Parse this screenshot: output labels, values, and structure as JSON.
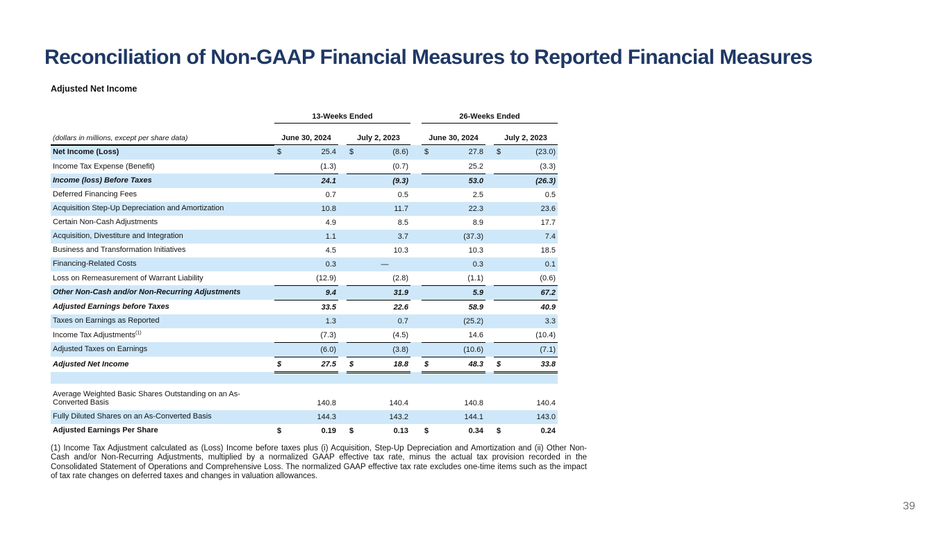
{
  "page": {
    "title": "Reconciliation of Non-GAAP Financial Measures to Reported Financial Measures",
    "subtitle": "Adjusted Net Income",
    "page_number": "39",
    "accent_color": "#1f3864",
    "row_highlight_color": "#cfe8f9"
  },
  "table": {
    "currency_symbol": "$",
    "unit_note": "(dollars in millions, except per share data)",
    "group_headers": [
      "13-Weeks Ended",
      "26-Weeks Ended"
    ],
    "column_headers": [
      "June 30, 2024",
      "July 2, 2023",
      "June 30, 2024",
      "July 2, 2023"
    ],
    "rows": [
      {
        "label": "Net Income (Loss)",
        "label_bold": true,
        "dollar": true,
        "shade": true,
        "underline": "none",
        "values": [
          "25.4",
          "(8.6)",
          "27.8",
          "(23.0)"
        ]
      },
      {
        "label": "Income Tax Expense (Benefit)",
        "shade": false,
        "underline": "single",
        "values": [
          "(1.3)",
          "(0.7)",
          "25.2",
          "(3.3)"
        ]
      },
      {
        "label": "Income (loss) Before Taxes",
        "bold": true,
        "italic": true,
        "shade": true,
        "underline": "none",
        "values": [
          "24.1",
          "(9.3)",
          "53.0",
          "(26.3)"
        ]
      },
      {
        "label": "Deferred Financing Fees",
        "shade": false,
        "underline": "none",
        "values": [
          "0.7",
          "0.5",
          "2.5",
          "0.5"
        ]
      },
      {
        "label": "Acquisition Step-Up Depreciation and Amortization",
        "shade": true,
        "underline": "none",
        "values": [
          "10.8",
          "11.7",
          "22.3",
          "23.6"
        ]
      },
      {
        "label": "Certain Non-Cash Adjustments",
        "shade": false,
        "underline": "none",
        "values": [
          "4.9",
          "8.5",
          "8.9",
          "17.7"
        ]
      },
      {
        "label": "Acquisition, Divestiture and Integration",
        "shade": true,
        "underline": "none",
        "values": [
          "1.1",
          "3.7",
          "(37.3)",
          "7.4"
        ]
      },
      {
        "label": "Business and Transformation Initiatives",
        "shade": false,
        "underline": "none",
        "values": [
          "4.5",
          "10.3",
          "10.3",
          "18.5"
        ]
      },
      {
        "label": "Financing-Related Costs",
        "shade": true,
        "underline": "none",
        "values": [
          "0.3",
          "—",
          "0.3",
          "0.1"
        ]
      },
      {
        "label": "Loss on Remeasurement of Warrant Liability",
        "shade": false,
        "underline": "single",
        "values": [
          "(12.9)",
          "(2.8)",
          "(1.1)",
          "(0.6)"
        ]
      },
      {
        "label": "Other Non-Cash and/or Non-Recurring Adjustments",
        "bold": true,
        "italic": true,
        "shade": true,
        "underline": "single",
        "values": [
          "9.4",
          "31.9",
          "5.9",
          "67.2"
        ]
      },
      {
        "label": "Adjusted Earnings before Taxes",
        "bold": true,
        "italic": true,
        "shade": false,
        "underline": "none",
        "values": [
          "33.5",
          "22.6",
          "58.9",
          "40.9"
        ]
      },
      {
        "label": "Taxes on Earnings as Reported",
        "shade": true,
        "underline": "none",
        "values": [
          "1.3",
          "0.7",
          "(25.2)",
          "3.3"
        ]
      },
      {
        "label": "Income Tax Adjustments",
        "sup": "(1)",
        "shade": false,
        "underline": "single",
        "values": [
          "(7.3)",
          "(4.5)",
          "14.6",
          "(10.4)"
        ]
      },
      {
        "label": "Adjusted Taxes on Earnings",
        "shade": true,
        "underline": "single",
        "values": [
          "(6.0)",
          "(3.8)",
          "(10.6)",
          "(7.1)"
        ]
      },
      {
        "label": "Adjusted Net Income",
        "bold": true,
        "italic": true,
        "dollar": true,
        "shade": false,
        "underline": "double",
        "values": [
          "27.5",
          "18.8",
          "48.3",
          "33.8"
        ]
      },
      {
        "spacer": true,
        "shade": true,
        "label": "",
        "values": [
          "",
          "",
          "",
          ""
        ],
        "underline": "none"
      },
      {
        "label": "Average Weighted Basic Shares Outstanding on an As-Converted Basis",
        "tall": true,
        "shade": false,
        "underline": "none",
        "values": [
          "140.8",
          "140.4",
          "140.8",
          "140.4"
        ]
      },
      {
        "label": "Fully Diluted Shares on an As-Converted Basis",
        "shade": true,
        "underline": "none",
        "values": [
          "144.3",
          "143.2",
          "144.1",
          "143.0"
        ]
      },
      {
        "label": "Adjusted Earnings Per Share",
        "bold": true,
        "dollar": true,
        "shade": false,
        "underline": "none",
        "values": [
          "0.19",
          "0.13",
          "0.34",
          "0.24"
        ]
      }
    ]
  },
  "footnote": "(1) Income Tax Adjustment calculated as (Loss) Income before taxes plus (i) Acquisition, Step-Up Depreciation and Amortization and (ii) Other Non-Cash and/or Non-Recurring Adjustments, multiplied by a normalized GAAP effective tax rate, minus the actual tax provision recorded in the Consolidated Statement of Operations and Comprehensive Loss. The normalized GAAP effective tax rate excludes one-time items such as the impact of tax rate changes on deferred taxes and changes in valuation allowances."
}
